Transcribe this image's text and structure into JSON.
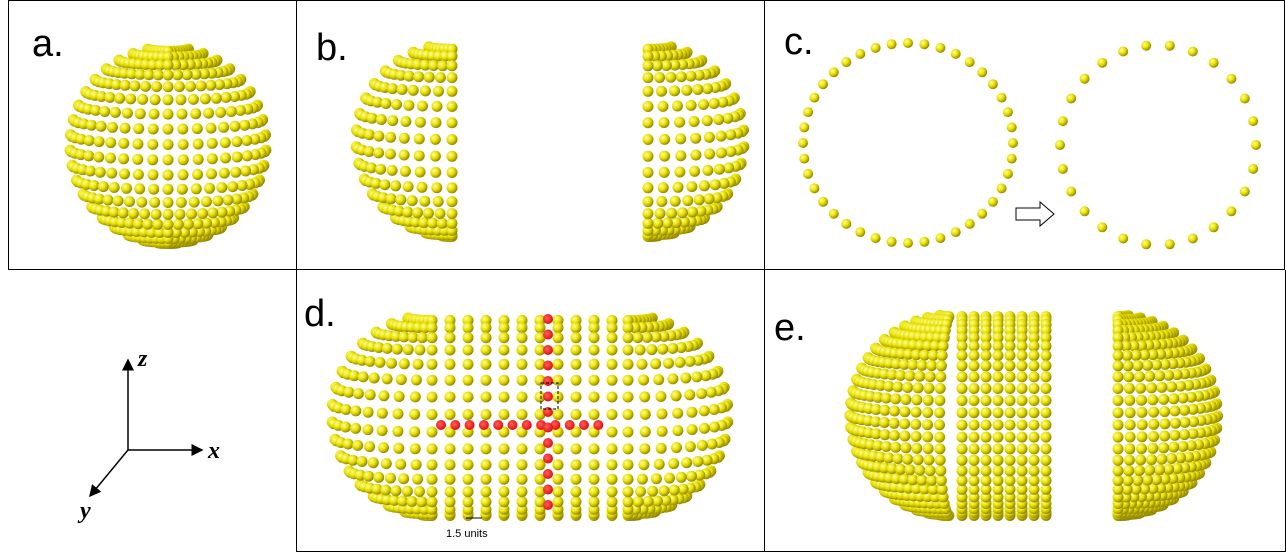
{
  "panels": {
    "a": "a.",
    "b": "b.",
    "c": "c.",
    "d": "d.",
    "e": "e."
  },
  "axes": {
    "z": "z",
    "x": "x",
    "y": "y"
  },
  "scale_bar": "1.5 units"
}
